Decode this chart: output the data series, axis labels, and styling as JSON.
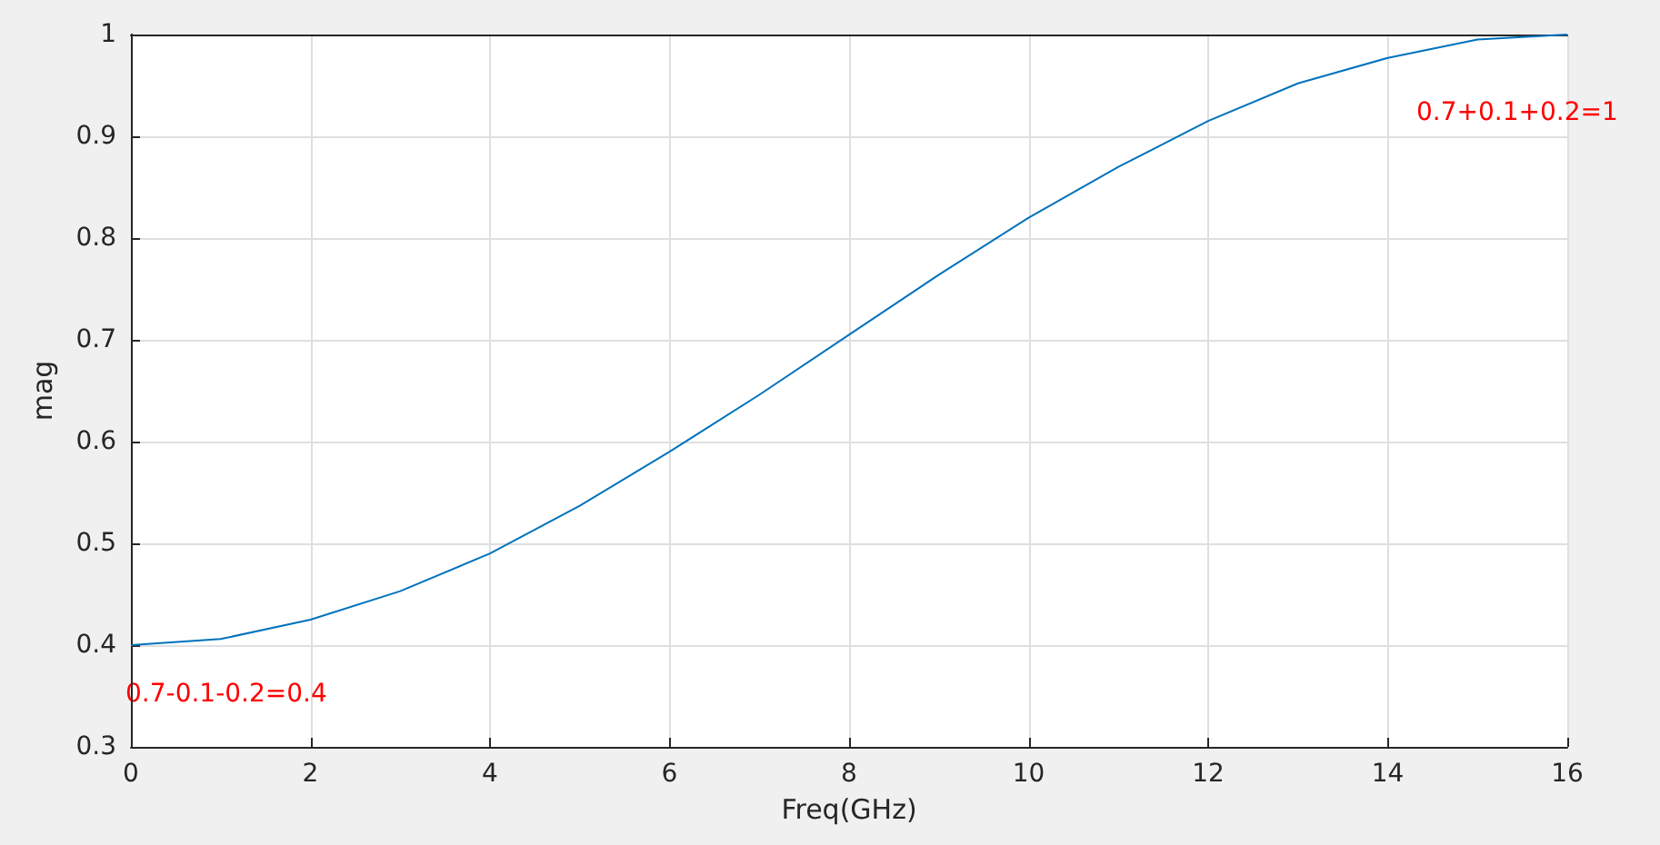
{
  "chart_data": {
    "type": "line",
    "xlabel": "Freq(GHz)",
    "ylabel": "mag",
    "x": [
      0,
      1,
      2,
      3,
      4,
      5,
      6,
      7,
      8,
      9,
      10,
      11,
      12,
      13,
      14,
      15,
      16
    ],
    "series": [
      {
        "color": "#0072bd",
        "values": [
          0.4,
          0.406,
          0.425,
          0.453,
          0.49,
          0.537,
          0.59,
          0.646,
          0.705,
          0.764,
          0.82,
          0.87,
          0.915,
          0.952,
          0.977,
          0.995,
          1.0
        ]
      }
    ],
    "xlim": [
      0,
      16
    ],
    "xticks": [
      0,
      2,
      4,
      6,
      8,
      10,
      12,
      14,
      16
    ],
    "ylim": [
      0.3,
      1
    ],
    "yticks": [
      0.3,
      0.4,
      0.5,
      0.6,
      0.7,
      0.8,
      0.9,
      1
    ],
    "grid": true,
    "marker": "none",
    "line_style": "solid",
    "annotations": [
      {
        "text": "0.7-0.1-0.2=0.4",
        "x": 0,
        "y": 0.4
      },
      {
        "text": "0.7+0.1+0.2=1",
        "x": 16,
        "y": 1
      }
    ]
  }
}
